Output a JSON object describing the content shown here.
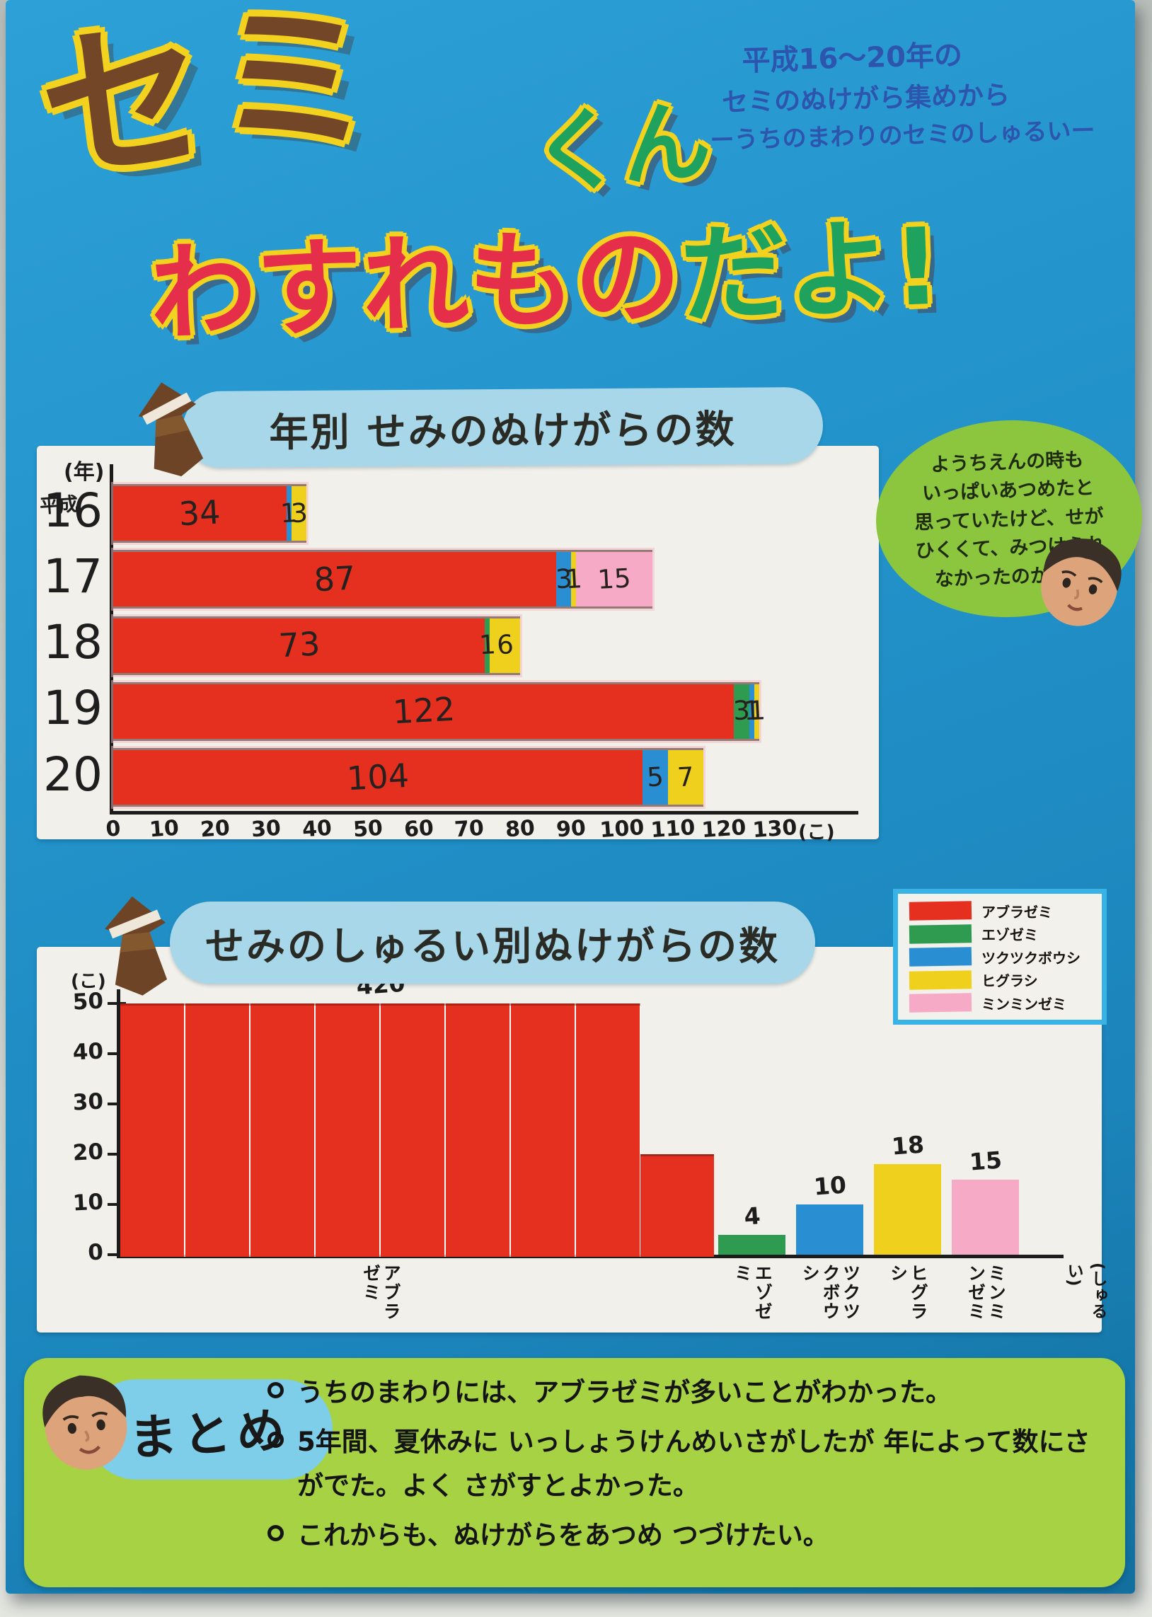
{
  "title": {
    "semi": "セミ",
    "kun": "くん",
    "wasuremono": "わすれもの",
    "dayo": "だよ!"
  },
  "subtitle": {
    "lines": [
      "平成16〜20年の",
      "セミのぬけがら集めから",
      "ーうちのまわりのセミのしゅるいー"
    ]
  },
  "speech_bubble": {
    "lines": [
      "ようちえんの時も",
      "いっぱいあつめたと",
      "思っていたけど、せが",
      "ひくくて、みつけられ",
      "なかったのかなー"
    ]
  },
  "legend": {
    "items": [
      {
        "label": "アブラゼミ",
        "color": "#e53020"
      },
      {
        "label": "エゾゼミ",
        "color": "#2e9b51"
      },
      {
        "label": "ツクツクボウシ",
        "color": "#2a8fd2"
      },
      {
        "label": "ヒグラシ",
        "color": "#efd11d"
      },
      {
        "label": "ミンミンゼミ",
        "color": "#f6aac6"
      }
    ]
  },
  "summary": {
    "heading": "まとめ",
    "bullets": [
      "うちのまわりには、アブラゼミが多いことがわかった。",
      "5年間、夏休みに いっしょうけんめいさがしたが 年によって数にさがでた。よく さがすとよかった。",
      "これからも、ぬけがらをあつめ つづけたい。"
    ]
  },
  "chart_data": [
    {
      "type": "bar",
      "orientation": "horizontal",
      "stacked": true,
      "title": "年別 せみのぬけがらの数",
      "y_axis_unit": "(年)",
      "y_axis_era": "平成",
      "categories": [
        "16",
        "17",
        "18",
        "19",
        "20"
      ],
      "x_unit": "(こ)",
      "xlim": [
        0,
        130
      ],
      "x_ticks": [
        0,
        10,
        20,
        30,
        40,
        50,
        60,
        70,
        80,
        90,
        100,
        110,
        120,
        130
      ],
      "series": [
        {
          "name": "アブラゼミ",
          "color": "#e53020",
          "values": [
            34,
            87,
            73,
            122,
            104
          ]
        },
        {
          "name": "エゾゼミ",
          "color": "#2e9b51",
          "values": [
            0,
            0,
            1,
            3,
            0
          ]
        },
        {
          "name": "ツクツクボウシ",
          "color": "#2a8fd2",
          "values": [
            1,
            3,
            0,
            1,
            5
          ]
        },
        {
          "name": "ヒグラシ",
          "color": "#efd11d",
          "values": [
            3,
            1,
            6,
            1,
            7
          ]
        },
        {
          "name": "ミンミンゼミ",
          "color": "#f6aac6",
          "values": [
            0,
            15,
            0,
            0,
            0
          ]
        }
      ]
    },
    {
      "type": "bar",
      "orientation": "vertical",
      "title": "せみのしゅるい別ぬけがらの数",
      "y_unit": "(こ)",
      "ylim": [
        0,
        50
      ],
      "y_ticks": [
        0,
        10,
        20,
        30,
        40,
        50
      ],
      "x_unit": "(しゅるい)",
      "categories": [
        "アブラゼミ",
        "エゾゼミ",
        "ツクツクボウシ",
        "ヒグラシ",
        "ミンミンゼミ"
      ],
      "values": [
        420,
        4,
        10,
        18,
        15
      ],
      "colors": [
        "#e53020",
        "#2e9b51",
        "#2a8fd2",
        "#efd11d",
        "#f6aac6"
      ]
    }
  ]
}
